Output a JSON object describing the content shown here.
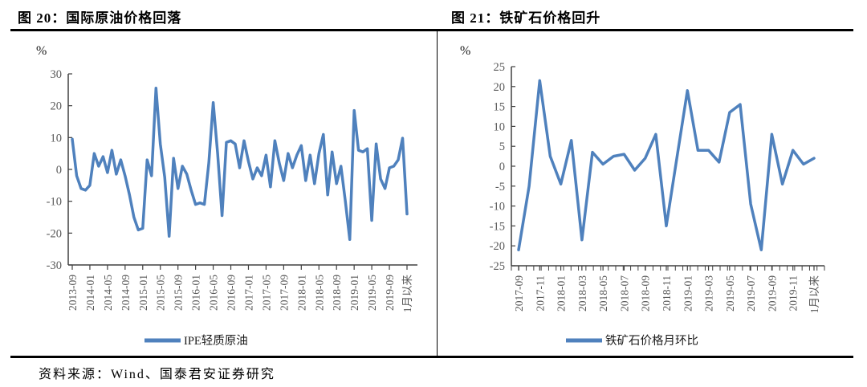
{
  "source_note": "资料来源：Wind、国泰君安证券研究",
  "chart_data": [
    {
      "type": "line",
      "title": "图 20：国际原油价格回落",
      "unit_label": "%",
      "legend": "IPE轻质原油",
      "line_color": "#4F81BD",
      "ylim": [
        -30,
        30
      ],
      "y_tick_labels": [
        "30",
        "20",
        "10",
        "0",
        "-10",
        "-20",
        "-30"
      ],
      "x_frequency": "monthly",
      "x_start": "2013-09",
      "x_label_every_n_points": 4,
      "x_tick_labels": [
        "2013-09",
        "2014-01",
        "2014-05",
        "2014-09",
        "2015-01",
        "2015-05",
        "2015-09",
        "2016-01",
        "2016-05",
        "2016-09",
        "2017-01",
        "2017-05",
        "2017-09",
        "2018-01",
        "2018-05",
        "2018-09",
        "2019-01",
        "2019-05",
        "2019-09",
        "1月以来"
      ],
      "values": [
        9.5,
        -2,
        -6,
        -6.5,
        -5,
        5,
        1,
        4,
        -1,
        6,
        -1.5,
        3,
        -2,
        -8,
        -15,
        -19,
        -18.5,
        3,
        -2,
        25.5,
        8,
        -2.5,
        -21,
        3.5,
        -6,
        1,
        -1.5,
        -6.5,
        -11,
        -10.5,
        -11,
        2,
        21,
        5,
        -14.5,
        8.5,
        9,
        8,
        0.5,
        9,
        2.5,
        -3,
        0.5,
        -2,
        4.5,
        -5.5,
        9,
        2,
        -3.5,
        5,
        0.5,
        4.5,
        7.5,
        -3.5,
        4.5,
        -4.5,
        5,
        11,
        -8,
        5.5,
        -4.5,
        1,
        -10,
        -22,
        18.5,
        6,
        5.5,
        6.5,
        -16,
        8,
        -3,
        -6,
        0.5,
        1,
        3,
        9.8,
        -14
      ],
      "legend_position": "bottom-center",
      "grid": false
    },
    {
      "type": "line",
      "title": "图 21：铁矿石价格回升",
      "unit_label": "%",
      "legend": "铁矿石价格月环比",
      "line_color": "#4F81BD",
      "ylim": [
        -25,
        25
      ],
      "y_tick_labels": [
        "25",
        "20",
        "15",
        "10",
        "5",
        "0",
        "-5",
        "-10",
        "-15",
        "-20",
        "-25"
      ],
      "x_frequency": "monthly",
      "x_start": "2017-09",
      "x_label_every_n_points": 2,
      "x_tick_labels": [
        "2017-09",
        "2017-11",
        "2018-01",
        "2018-03",
        "2018-05",
        "2018-07",
        "2018-09",
        "2018-11",
        "2019-01",
        "2019-03",
        "2019-05",
        "2019-07",
        "2019-09",
        "2019-11",
        "1月以来"
      ],
      "values": [
        -21,
        -5,
        21.5,
        2.5,
        -4.5,
        6.5,
        -18.5,
        3.5,
        0.5,
        2.5,
        3,
        -1,
        2,
        8,
        -15,
        2,
        19,
        4,
        4,
        1,
        13.5,
        15.5,
        -9.5,
        -21,
        8,
        -4.5,
        4,
        0.5,
        2
      ],
      "legend_position": "bottom-center",
      "grid": false
    }
  ]
}
